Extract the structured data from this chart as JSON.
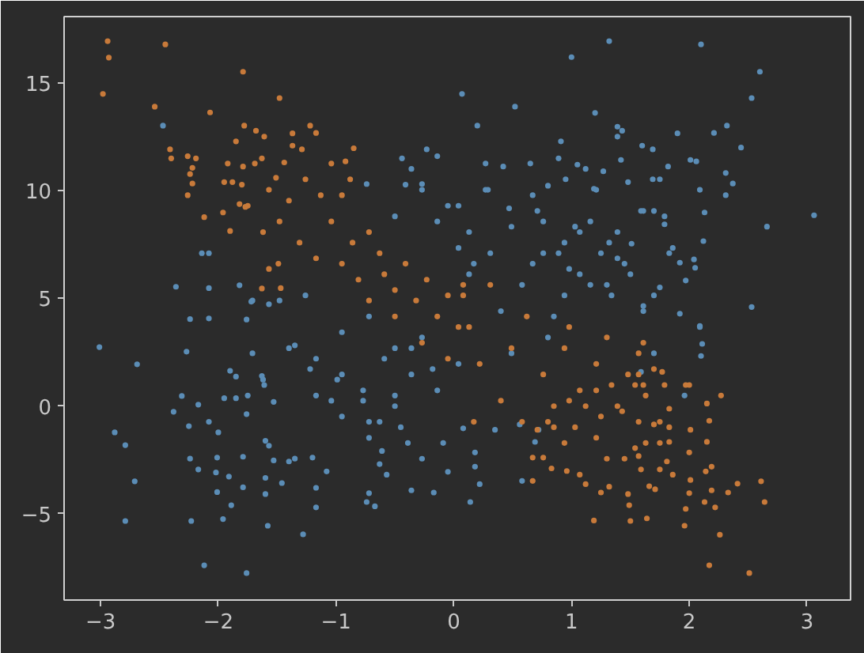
{
  "chart_data": {
    "type": "scatter",
    "marker": "circle",
    "xlim": [
      -3.31,
      3.37
    ],
    "ylim": [
      -9.0,
      18.08
    ],
    "xticks": [
      {
        "value": -3,
        "label": "−3"
      },
      {
        "value": -2,
        "label": "−2"
      },
      {
        "value": -1,
        "label": "−1"
      },
      0,
      1,
      2,
      3
    ],
    "yticks": [
      {
        "value": -5,
        "label": "−5"
      },
      0,
      5,
      10,
      15
    ],
    "series": [
      {
        "color": "#5b8db6",
        "x": [
          -2.47,
          -2.36,
          -2.14,
          -2.08,
          -2.08,
          -2.24,
          -2.08,
          -1.76,
          -1.82,
          -1.72,
          -1.57,
          -0.23,
          -0.44,
          -0.36,
          -0.74,
          -0.41,
          -0.27,
          -0.14,
          1.32,
          2.1,
          2.6,
          2.53,
          1.0,
          0.07,
          0.52,
          0.2,
          1.2,
          1.39,
          1.43,
          1.39,
          1.9,
          2.21,
          2.32,
          2.44,
          0.91,
          1.6,
          1.69,
          2.01,
          2.06,
          2.31,
          2.37,
          2.31,
          2.09,
          2.13,
          2.66,
          3.06,
          2.12,
          1.82,
          1.69,
          1.42,
          1.27,
          1.19,
          1.48,
          0.42,
          0.27,
          0.89,
          0.65,
          1.05,
          1.12,
          1.59,
          1.7,
          1.79,
          1.79,
          1.86,
          1.92,
          2.04,
          2.05,
          1.97,
          1.75,
          1.7,
          2.53,
          1.92,
          2.09,
          1.61,
          1.5,
          1.45,
          1.25,
          1.32,
          1.39,
          1.51,
          0.95,
          0.8,
          0.67,
          0.47,
          0.29,
          0.04,
          0.76,
          1.03,
          1.07,
          0.89,
          0.67,
          0.98,
          1.16,
          1.34,
          0.94,
          0.85,
          -3.01,
          -2.69,
          -2.88,
          -2.79,
          -2.71,
          -2.79,
          -2.27,
          -2.31,
          -2.38,
          -2.25,
          -2.17,
          -2.24,
          -2.23,
          -2.17,
          -2.12,
          -2.08,
          -2.0,
          -2.01,
          -2.02,
          -2.01,
          -1.96,
          -1.91,
          -1.89,
          -1.79,
          -1.79,
          -1.76,
          -1.9,
          -1.85,
          -1.95,
          -1.85,
          -1.75,
          -1.76,
          -1.61,
          -1.63,
          -1.53,
          -1.6,
          -1.57,
          -1.53,
          -1.6,
          -1.6,
          -1.58,
          -1.46,
          -1.4,
          -1.35,
          -1.28,
          -1.17,
          -1.17,
          -1.08,
          -1.2,
          -1.71,
          -1.35,
          -1.22,
          -1.17,
          -0.99,
          -0.95,
          -0.77,
          -0.72,
          -0.63,
          -0.61,
          -0.63,
          -0.57,
          -0.72,
          -0.74,
          -0.67,
          -0.36,
          -0.39,
          -0.27,
          -0.45,
          -0.17,
          -0.5,
          -0.18,
          -0.36,
          -0.05,
          0.14,
          0.22,
          0.18,
          0.18,
          -0.09,
          0.08,
          0.58,
          0.72,
          0.69,
          0.56,
          0.35,
          1.96,
          2.1,
          2.11,
          2.09,
          1.7,
          1.59,
          -1.17,
          -0.95,
          -1.04,
          -0.77,
          -0.59,
          -0.72,
          -0.5,
          -0.36,
          -0.27,
          -0.14,
          0.04,
          0.04,
          -0.14,
          -0.05,
          -0.5,
          -0.27,
          -1.4,
          -1.62,
          -1.71,
          -1.48,
          -1.26,
          -0.95,
          -0.72,
          -0.5,
          0.13,
          0.13,
          0.27,
          0.49,
          0.71,
          0.94,
          1.16,
          1.39,
          1.3,
          1.07,
          0.76,
          0.58,
          0.4,
          0.17,
          0.31,
          0.8,
          1.61,
          1.83,
          1.61,
          1.75,
          1.21,
          0.49
        ],
        "values": [
          13.02,
          5.54,
          7.1,
          7.1,
          5.48,
          4.04,
          4.07,
          4.02,
          5.61,
          4.85,
          4.73,
          11.92,
          11.5,
          11.01,
          10.31,
          10.28,
          10.31,
          11.6,
          16.94,
          16.79,
          15.52,
          14.3,
          16.2,
          14.49,
          13.9,
          13.02,
          13.61,
          12.97,
          12.78,
          12.51,
          12.66,
          12.68,
          13.02,
          12.0,
          12.29,
          12.09,
          11.92,
          11.43,
          11.36,
          10.82,
          10.33,
          9.79,
          10.04,
          8.99,
          8.33,
          8.86,
          7.66,
          11.12,
          10.53,
          11.43,
          10.9,
          10.09,
          10.4,
          11.12,
          11.26,
          11.5,
          11.26,
          11.21,
          11.01,
          9.06,
          9.06,
          8.81,
          8.44,
          7.34,
          6.66,
          6.81,
          6.42,
          5.83,
          5.51,
          5.14,
          4.6,
          4.29,
          3.67,
          4.65,
          6.12,
          6.61,
          7.1,
          7.59,
          8.08,
          7.54,
          10.53,
          10.23,
          9.79,
          9.18,
          10.04,
          9.3,
          8.57,
          8.33,
          8.08,
          7.1,
          6.61,
          6.37,
          5.63,
          5.14,
          5.14,
          4.16,
          2.74,
          1.94,
          -1.22,
          -1.81,
          -3.49,
          -5.33,
          2.53,
          0.47,
          -0.26,
          -0.93,
          0.07,
          -2.44,
          -5.33,
          -2.94,
          -7.39,
          -0.73,
          -1.22,
          -2.39,
          -3.08,
          -3.99,
          -5.24,
          -3.27,
          -4.6,
          -2.35,
          -3.77,
          -7.75,
          1.64,
          1.37,
          0.37,
          0.37,
          0.49,
          -0.37,
          0.98,
          1.4,
          0.2,
          -1.61,
          -1.84,
          -2.52,
          -3.33,
          -4.08,
          -5.55,
          -3.57,
          -2.57,
          -2.44,
          -5.95,
          -3.79,
          -4.7,
          -3.03,
          -2.39,
          2.45,
          2.82,
          1.72,
          0.49,
          1.23,
          -0.48,
          0.25,
          -1.47,
          -0.73,
          -2.08,
          -2.69,
          -3.18,
          -4.04,
          -4.45,
          -4.65,
          -3.91,
          -1.71,
          -2.44,
          -0.98,
          -4.01,
          0.49,
          1.72,
          2.69,
          -3.05,
          -4.45,
          -3.62,
          -2.81,
          -2.15,
          -1.71,
          -1.03,
          -3.47,
          -1.1,
          -1.66,
          -0.85,
          -1.1,
          0.49,
          2.33,
          2.89,
          3.72,
          2.45,
          1.59,
          2.2,
          1.47,
          0.25,
          0.73,
          2.2,
          -0.73,
          0.0,
          1.47,
          3.19,
          0.73,
          1.96,
          7.34,
          8.57,
          9.3,
          8.81,
          10.04,
          2.69,
          1.23,
          4.9,
          4.9,
          5.14,
          3.43,
          4.16,
          2.69,
          8.08,
          6.12,
          10.04,
          8.33,
          9.06,
          7.59,
          8.57,
          6.86,
          5.63,
          6.12,
          7.1,
          5.63,
          4.41,
          6.61,
          7.1,
          3.19,
          4.41,
          7.1,
          9.06,
          10.53,
          10.04,
          2.45
        ]
      },
      {
        "color": "#c87a3a",
        "x": [
          -2.94,
          -2.93,
          -2.98,
          -2.45,
          -2.54,
          -2.41,
          -2.4,
          -2.26,
          -2.19,
          -2.22,
          -2.24,
          -2.22,
          -2.26,
          -2.12,
          -2.07,
          -1.79,
          -1.48,
          -1.78,
          -1.85,
          -1.68,
          -1.61,
          -1.22,
          -1.17,
          -1.37,
          -1.37,
          -1.29,
          -1.92,
          -1.79,
          -1.69,
          -1.63,
          -1.95,
          -1.88,
          -1.8,
          -1.96,
          -1.9,
          -1.82,
          -1.77,
          -1.44,
          -1.51,
          -0.92,
          -0.85,
          -0.88,
          -1.63,
          -1.47,
          -1.49,
          2.51,
          2.17,
          2.26,
          2.64,
          2.61,
          2.41,
          2.33,
          2.19,
          2.22,
          2.13,
          1.96,
          1.97,
          2.0,
          2.01,
          2.14,
          2.19,
          2.0,
          2.15,
          2.17,
          2.01,
          2.15,
          2.0,
          2.27,
          1.64,
          1.5,
          1.49,
          1.19,
          1.25,
          1.32,
          1.48,
          1.66,
          1.71,
          1.75,
          1.81,
          1.86,
          1.59,
          1.57,
          1.45,
          1.3,
          1.12,
          1.07,
          0.96,
          0.83,
          0.76,
          0.67,
          0.67,
          1.83,
          1.75,
          1.63,
          1.54,
          1.83,
          1.7,
          1.57,
          1.83,
          1.79,
          1.63,
          1.54,
          1.39,
          1.43,
          1.25,
          1.21,
          1.03,
          0.94,
          0.85,
          0.71,
          1.12,
          0.98,
          0.85,
          1.21,
          1.34,
          1.48,
          1.61,
          1.7,
          1.77,
          1.57,
          1.61,
          -1.75,
          -1.62,
          -1.48,
          -1.4,
          -1.26,
          -1.13,
          -1.04,
          -0.95,
          -0.86,
          -0.72,
          -0.63,
          -0.81,
          -0.59,
          -0.5,
          -0.41,
          -0.32,
          -0.23,
          -0.14,
          -0.05,
          0.04,
          0.08,
          -1.17,
          -1.31,
          -1.57,
          -0.95,
          -0.72,
          -0.27,
          -0.05,
          -0.5,
          -1.04,
          -1.57,
          0.13,
          0.31,
          0.22,
          0.49,
          0.62,
          0.76,
          0.94,
          1.07,
          1.21,
          1.57,
          1.75,
          0.4,
          0.58,
          0.17,
          0.08,
          0.8,
          0.98,
          1.3,
          1.97
        ],
        "values": [
          16.94,
          16.18,
          14.49,
          16.79,
          13.9,
          11.92,
          11.5,
          11.6,
          11.5,
          11.06,
          10.77,
          10.33,
          9.79,
          8.77,
          13.63,
          15.52,
          14.3,
          13.02,
          12.29,
          12.78,
          12.51,
          13.02,
          12.68,
          12.66,
          12.09,
          11.92,
          11.26,
          11.12,
          11.26,
          11.5,
          10.4,
          10.4,
          10.28,
          8.99,
          8.13,
          9.38,
          9.25,
          11.31,
          10.6,
          11.36,
          11.97,
          10.53,
          5.46,
          5.48,
          6.61,
          -7.75,
          -7.39,
          -5.97,
          -4.45,
          -3.49,
          -3.6,
          -4.01,
          -3.91,
          -4.7,
          -4.45,
          -5.55,
          -4.77,
          -4.04,
          -3.43,
          -3.03,
          -2.81,
          -2.15,
          -1.66,
          -0.68,
          -1.1,
          0.12,
          0.98,
          0.49,
          -5.21,
          -5.33,
          -4.6,
          -5.31,
          -4.01,
          -3.74,
          -4.08,
          -3.72,
          -3.86,
          -2.94,
          -2.57,
          -3.18,
          -2.94,
          -2.32,
          -2.44,
          -2.44,
          -3.62,
          -3.18,
          -3.01,
          -2.89,
          -2.39,
          -2.39,
          -3.47,
          -1.66,
          -1.71,
          -1.71,
          -1.95,
          -0.98,
          -0.85,
          -0.73,
          -0.12,
          0.98,
          0.49,
          0.98,
          0.0,
          -0.24,
          -0.48,
          -1.47,
          -0.98,
          -1.71,
          -0.98,
          -1.1,
          0.0,
          0.25,
          0.0,
          0.73,
          0.98,
          1.47,
          0.98,
          1.72,
          1.59,
          2.45,
          2.94,
          9.3,
          8.08,
          8.57,
          9.54,
          10.53,
          9.79,
          8.57,
          9.79,
          7.59,
          8.08,
          7.1,
          5.87,
          6.12,
          5.39,
          6.61,
          4.9,
          5.87,
          4.16,
          5.14,
          3.67,
          5.63,
          6.86,
          7.59,
          6.37,
          6.61,
          4.9,
          2.94,
          2.2,
          4.16,
          11.26,
          10.04,
          3.67,
          5.63,
          1.96,
          2.69,
          4.16,
          1.47,
          2.69,
          0.73,
          1.96,
          1.47,
          -0.73,
          0.25,
          -0.73,
          -0.73,
          5.14,
          -0.73,
          3.67,
          3.19,
          0.98
        ]
      }
    ]
  }
}
